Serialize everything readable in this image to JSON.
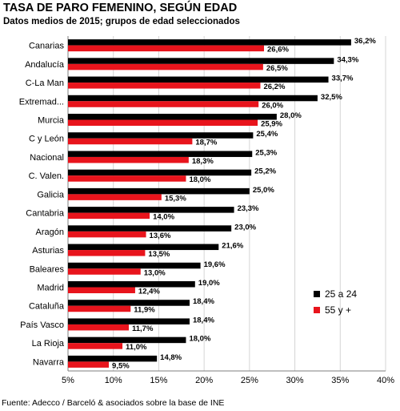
{
  "title": "TASA DE PARO FEMENINO, SEGÚN EDAD",
  "subtitle": "Datos medios de 2015; grupos de edad seleccionados",
  "source": "Fuente: Adecco / Barceló & asociados sobre la base de INE",
  "colors": {
    "series_25_24": "#000000",
    "series_55_plus": "#e8141c",
    "grid": "#d4d4d4"
  },
  "chart_data": {
    "type": "bar",
    "orientation": "horizontal",
    "categories": [
      "Canarias",
      "Andalucía",
      "C-La Man",
      "Extremad...",
      "Murcia",
      "C y León",
      "Nacional",
      "C. Valen.",
      "Galicia",
      "Cantabria",
      "Aragón",
      "Asturias",
      "Baleares",
      "Madrid",
      "Cataluña",
      "País Vasco",
      "La Rioja",
      "Navarra"
    ],
    "series": [
      {
        "name": "25 a 24",
        "values": [
          36.2,
          34.3,
          33.7,
          32.5,
          28.0,
          25.4,
          25.3,
          25.2,
          25.0,
          23.3,
          23.0,
          21.6,
          19.6,
          19.0,
          18.4,
          18.4,
          18.0,
          14.8
        ],
        "labels": [
          "36,2%",
          "34,3%",
          "33,7%",
          "32,5%",
          "28,0%",
          "25,4%",
          "25,3%",
          "25,2%",
          "25,0%",
          "23,3%",
          "23,0%",
          "21,6%",
          "19,6%",
          "19,0%",
          "18,4%",
          "18,4%",
          "18,0%",
          "14,8%"
        ]
      },
      {
        "name": "55 y +",
        "values": [
          26.6,
          26.5,
          26.2,
          26.0,
          25.9,
          18.7,
          18.3,
          18.0,
          15.3,
          14.0,
          13.6,
          13.5,
          13.0,
          12.4,
          11.9,
          11.7,
          11.0,
          9.5
        ],
        "labels": [
          "26,6%",
          "26,5%",
          "26,2%",
          "26,0%",
          "25,9%",
          "18,7%",
          "18,3%",
          "18,0%",
          "15,3%",
          "14,0%",
          "13,6%",
          "13,5%",
          "13,0%",
          "12,4%",
          "11,9%",
          "11,7%",
          "11,0%",
          "9,5%"
        ]
      }
    ],
    "xlim": [
      5,
      40
    ],
    "xticks": [
      5,
      10,
      15,
      20,
      25,
      30,
      35,
      40
    ],
    "xtick_labels": [
      "5%",
      "10%",
      "15%",
      "20%",
      "25%",
      "30%",
      "35%",
      "40%"
    ],
    "grid": true,
    "legend_position": "right"
  }
}
